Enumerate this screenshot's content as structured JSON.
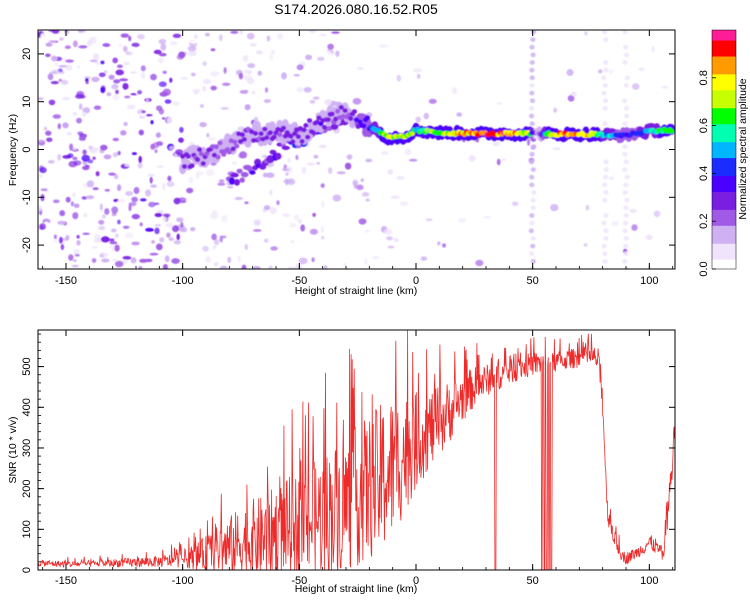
{
  "title": "S174.2026.080.16.52.R05",
  "colors": {
    "snr_line": "#ee2b2b",
    "axis": "#000000",
    "colormap": [
      "#ffffff",
      "#efe4fb",
      "#cfb0f3",
      "#a15ae6",
      "#7a1ee2",
      "#4b00ff",
      "#1a2cff",
      "#00b6ff",
      "#00ffb0",
      "#00ff00",
      "#c8ff00",
      "#ffff00",
      "#ff9a00",
      "#ff0000",
      "#ff1d96"
    ]
  },
  "chart_data": [
    {
      "type": "heatmap",
      "name": "spectrogram",
      "xlabel": "Height of straight line (km)",
      "ylabel": "Frequency (Hz)",
      "xlim": [
        -162,
        111
      ],
      "ylim": [
        -25,
        25
      ],
      "xticks": [
        -150,
        -100,
        -50,
        0,
        50,
        100
      ],
      "yticks": [
        -20,
        -10,
        0,
        10,
        20
      ],
      "colorbar": {
        "label": "Normalized spectral amplitude",
        "range": [
          0,
          1
        ],
        "ticks": [
          0,
          0.2,
          0.4,
          0.6,
          0.8
        ],
        "tick_labels": [
          "0.0",
          "0.2",
          "0.4",
          "0.6",
          "0.8"
        ]
      },
      "ridge": [
        {
          "x": -100,
          "f": -2.5,
          "amp": 0.3
        },
        {
          "x": -90,
          "f": -1.0,
          "amp": 0.25
        },
        {
          "x": -80,
          "f": 1.0,
          "amp": 0.25
        },
        {
          "x": -70,
          "f": 3.0,
          "amp": 0.28
        },
        {
          "x": -60,
          "f": 4.0,
          "amp": 0.28
        },
        {
          "x": -50,
          "f": 3.0,
          "amp": 0.3
        },
        {
          "x": -40,
          "f": 6.0,
          "amp": 0.3
        },
        {
          "x": -30,
          "f": 8.0,
          "amp": 0.25
        },
        {
          "x": -20,
          "f": 5.0,
          "amp": 0.4
        },
        {
          "x": -12,
          "f": 2.5,
          "amp": 0.75
        },
        {
          "x": -5,
          "f": 2.6,
          "amp": 0.75
        },
        {
          "x": 0,
          "f": 4.0,
          "amp": 0.6
        },
        {
          "x": 10,
          "f": 3.5,
          "amp": 0.7
        },
        {
          "x": 20,
          "f": 3.4,
          "amp": 0.85
        },
        {
          "x": 30,
          "f": 3.3,
          "amp": 0.95
        },
        {
          "x": 40,
          "f": 3.3,
          "amp": 0.9
        },
        {
          "x": 48,
          "f": 3.3,
          "amp": 0.7
        },
        {
          "x": 52,
          "f": 3.3,
          "amp": 0.15
        },
        {
          "x": 58,
          "f": 3.2,
          "amp": 0.8
        },
        {
          "x": 65,
          "f": 3.2,
          "amp": 0.9
        },
        {
          "x": 75,
          "f": 3.2,
          "amp": 0.85
        },
        {
          "x": 80,
          "f": 3.0,
          "amp": 0.55
        },
        {
          "x": 90,
          "f": 3.0,
          "amp": 0.4
        },
        {
          "x": 95,
          "f": 3.5,
          "amp": 0.45
        },
        {
          "x": 103,
          "f": 4.0,
          "amp": 0.55
        },
        {
          "x": 110,
          "f": 4.0,
          "amp": 0.7
        }
      ],
      "branch": [
        {
          "x": -80,
          "f": -7.0,
          "amp": 0.3
        },
        {
          "x": -70,
          "f": -4.0,
          "amp": 0.3
        },
        {
          "x": -60,
          "f": -1.0,
          "amp": 0.3
        },
        {
          "x": -50,
          "f": 2.0,
          "amp": 0.35
        },
        {
          "x": -40,
          "f": 5.0,
          "amp": 0.3
        },
        {
          "x": -30,
          "f": 7.0,
          "amp": 0.25
        }
      ],
      "noise_columns": [
        {
          "x": 50,
          "amp": 0.12
        },
        {
          "x": 81,
          "amp": 0.05
        },
        {
          "x": 90,
          "amp": 0.05
        }
      ]
    },
    {
      "type": "line",
      "name": "snr",
      "xlabel": "Height of straight line (km)",
      "ylabel": "SNR (10 * v/v)",
      "xlim": [
        -162,
        111
      ],
      "ylim": [
        0,
        590
      ],
      "xticks": [
        -150,
        -100,
        -50,
        0,
        50,
        100
      ],
      "yticks": [
        0,
        100,
        200,
        300,
        400,
        500
      ],
      "series": [
        {
          "name": "SNR",
          "x": [
            -162,
            -150,
            -140,
            -130,
            -120,
            -110,
            -100,
            -95,
            -90,
            -85,
            -80,
            -75,
            -70,
            -65,
            -60,
            -55,
            -50,
            -45,
            -40,
            -35,
            -30,
            -25,
            -20,
            -15,
            -10,
            -5,
            0,
            5,
            10,
            15,
            20,
            25,
            30,
            35,
            40,
            45,
            50,
            55,
            60,
            65,
            70,
            75,
            78,
            80,
            82,
            85,
            88,
            90,
            95,
            100,
            103,
            106,
            108,
            110,
            111
          ],
          "y": [
            18,
            15,
            16,
            18,
            20,
            22,
            28,
            35,
            45,
            55,
            65,
            75,
            85,
            90,
            105,
            115,
            125,
            135,
            150,
            165,
            180,
            200,
            220,
            240,
            270,
            300,
            330,
            350,
            375,
            400,
            430,
            455,
            470,
            480,
            490,
            500,
            510,
            512,
            515,
            520,
            525,
            528,
            520,
            420,
            150,
            80,
            40,
            30,
            45,
            70,
            60,
            35,
            140,
            290,
            360
          ],
          "spread": [
            8,
            8,
            8,
            10,
            12,
            14,
            20,
            30,
            45,
            60,
            75,
            90,
            100,
            105,
            115,
            125,
            130,
            140,
            150,
            160,
            170,
            175,
            180,
            190,
            180,
            150,
            120,
            100,
            90,
            75,
            60,
            50,
            40,
            35,
            30,
            30,
            30,
            28,
            25,
            25,
            25,
            25,
            30,
            40,
            30,
            20,
            15,
            15,
            15,
            20,
            20,
            15,
            40,
            60,
            40
          ]
        }
      ],
      "dropouts": [
        34,
        54,
        55,
        56,
        57,
        58
      ]
    }
  ]
}
